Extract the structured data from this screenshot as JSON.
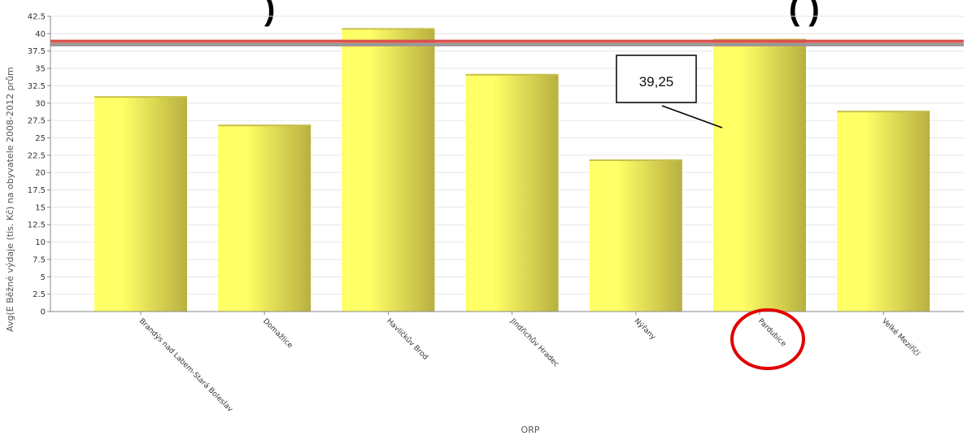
{
  "chart_data": {
    "type": "bar",
    "title_fragment": ") ",
    "title_fragment_right": "( )",
    "categories": [
      "Brandýs nad Labem-Stará Boleslav",
      "Domažlice",
      "Havlíčkův Brod",
      "Jindřichův Hradec",
      "Nýřany",
      "Pardubice",
      "Velké Meziříčí"
    ],
    "values": [
      31.0,
      26.9,
      40.8,
      34.2,
      21.9,
      39.25,
      28.9
    ],
    "xlabel": "ORP",
    "ylabel": "Avg(E Běžné výdaje (tis. Kč) na obyvatele 2008-2012 prům",
    "ylim": [
      0,
      42.5
    ],
    "yticks": [
      "0",
      "2.5",
      "5",
      "7.5",
      "10",
      "12.5",
      "15",
      "17.5",
      "20",
      "22.5",
      "25",
      "27.5",
      "30",
      "32.5",
      "35",
      "37.5",
      "40",
      "42.5"
    ],
    "grid": true,
    "reference_lines": [
      {
        "value": 38.4,
        "color": "#999999"
      },
      {
        "value": 38.9,
        "color": "#d9534f"
      }
    ],
    "annotation": {
      "text": "39,25",
      "category": "Pardubice"
    },
    "highlighted_category": "Pardubice",
    "colors": {
      "bar_light": "#ffff66",
      "bar_dark": "#b8b040",
      "highlight": "#e00000"
    }
  }
}
